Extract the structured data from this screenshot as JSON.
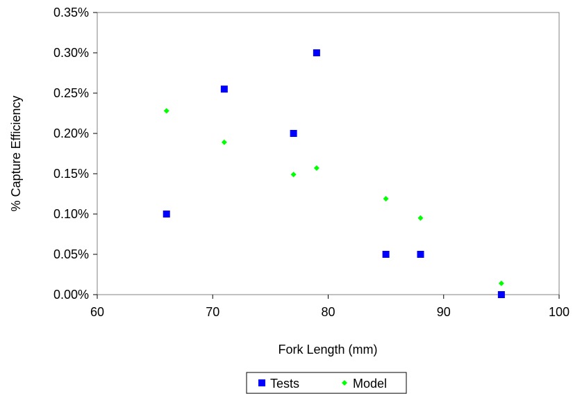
{
  "chart_data": {
    "type": "scatter",
    "title": "",
    "xlabel": "Fork Length (mm)",
    "ylabel": "% Capture Efficiency",
    "xlim": [
      60,
      100
    ],
    "ylim": [
      0,
      0.35
    ],
    "x_ticks": [
      60,
      70,
      80,
      90,
      100
    ],
    "x_tick_labels": [
      "60",
      "70",
      "80",
      "90",
      "100"
    ],
    "y_ticks": [
      0,
      0.05,
      0.1,
      0.15,
      0.2,
      0.25,
      0.3,
      0.35
    ],
    "y_tick_labels": [
      "0.00%",
      "0.05%",
      "0.10%",
      "0.15%",
      "0.20%",
      "0.25%",
      "0.30%",
      "0.35%"
    ],
    "grid": false,
    "legend_position": "bottom",
    "series": [
      {
        "name": "Tests",
        "marker": "square",
        "color": "#0000ff",
        "points": [
          {
            "x": 66,
            "y": 0.1
          },
          {
            "x": 71,
            "y": 0.255
          },
          {
            "x": 77,
            "y": 0.2
          },
          {
            "x": 79,
            "y": 0.3
          },
          {
            "x": 85,
            "y": 0.05
          },
          {
            "x": 88,
            "y": 0.05
          },
          {
            "x": 95,
            "y": 0.0
          }
        ]
      },
      {
        "name": "Model",
        "marker": "diamond",
        "color": "#00ff00",
        "points": [
          {
            "x": 66,
            "y": 0.228
          },
          {
            "x": 71,
            "y": 0.189
          },
          {
            "x": 77,
            "y": 0.149
          },
          {
            "x": 79,
            "y": 0.157
          },
          {
            "x": 85,
            "y": 0.119
          },
          {
            "x": 88,
            "y": 0.095
          },
          {
            "x": 95,
            "y": 0.014
          }
        ]
      }
    ]
  }
}
